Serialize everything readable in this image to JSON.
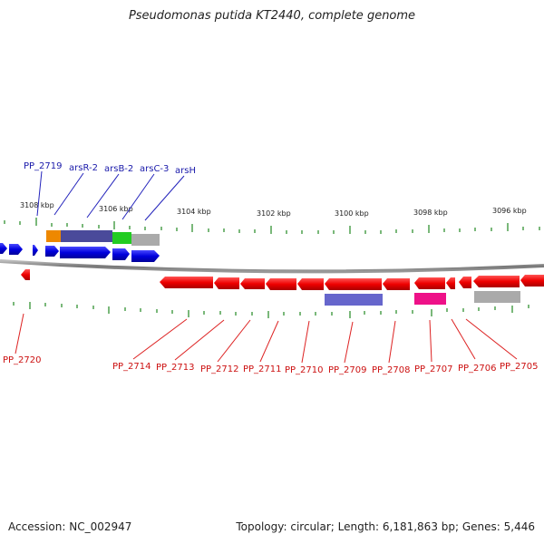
{
  "title": "Pseudomonas putida KT2440, complete genome",
  "footer": {
    "accession": "Accession: NC_002947",
    "summary": "Topology: circular; Length: 6,181,863 bp; Genes: 5,446"
  },
  "ruler": [
    "3108 kbp",
    "3106 kbp",
    "3104 kbp",
    "3102 kbp",
    "3100 kbp",
    "3098 kbp",
    "3096 kbp"
  ],
  "top_labels": [
    "PP_2719",
    "arsR-2",
    "arsB-2",
    "arsC-3",
    "arsH"
  ],
  "bottom_labels": [
    "PP_2720",
    "PP_2714",
    "PP_2713",
    "PP_2712",
    "PP_2711",
    "PP_2710",
    "PP_2709",
    "PP_2708",
    "PP_2707",
    "PP_2706",
    "PP_2705"
  ],
  "colors": {
    "forward_gene": "#0000dd",
    "reverse_gene": "#ee0000",
    "label_blue": "#1a1aaa",
    "label_red": "#cc1111",
    "tick": "#228822",
    "backbone": "#888888",
    "feature_orange": "#ee8800",
    "feature_purple": "#4a4a9a",
    "feature_green": "#22cc22",
    "feature_gray": "#aaaaaa",
    "feature_violet": "#6666cc",
    "feature_magenta": "#ee1188"
  }
}
